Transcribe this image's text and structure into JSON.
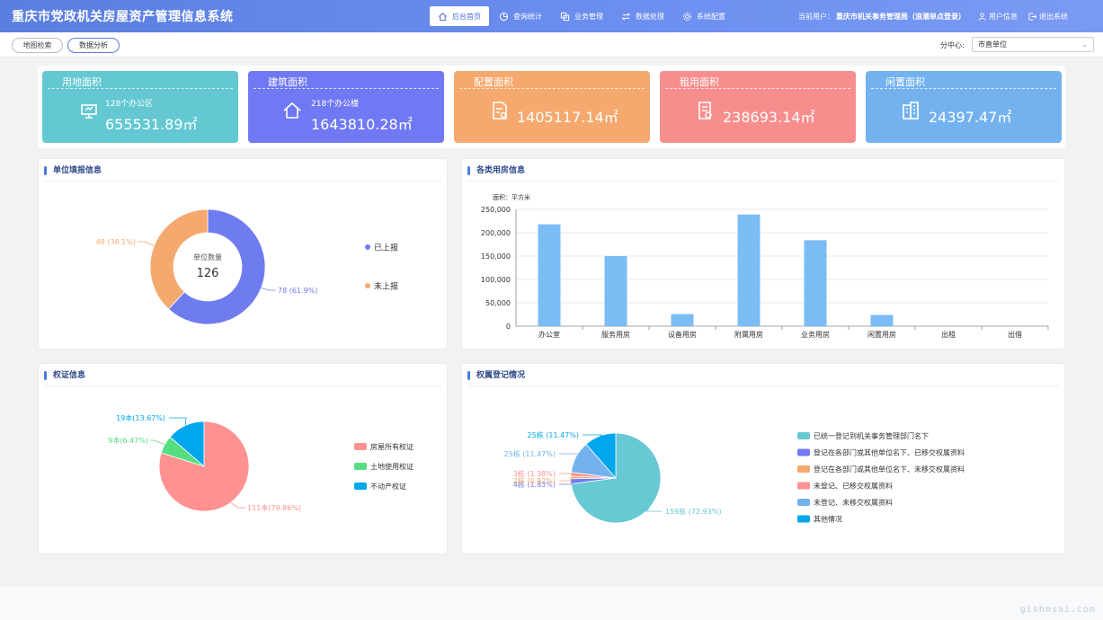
{
  "header": {
    "title": "重庆市党政机关房屋资产管理信息系统",
    "nav": [
      {
        "label": "后台首页",
        "icon": "home-icon",
        "active": true
      },
      {
        "label": "查询统计",
        "icon": "pie-chart-icon",
        "active": false
      },
      {
        "label": "业务管理",
        "icon": "copy-icon",
        "active": false
      },
      {
        "label": "数据处理",
        "icon": "swap-icon",
        "active": false
      },
      {
        "label": "系统配置",
        "icon": "gear-icon",
        "active": false
      }
    ],
    "user_label": "当前用户：",
    "user_name": "重庆市机关事务管理局（浪潮单点登录）",
    "user_info": "用户信息",
    "logout": "退出系统"
  },
  "toolbar": {
    "map_search": "地图检索",
    "data_analysis": "数据分析",
    "center_label": "分中心:",
    "center_value": "市直单位"
  },
  "stats": [
    {
      "title": "用地面积",
      "sub": "128个办公区",
      "value": "655531.89㎡",
      "color": "#63c8d1",
      "icon": "board-icon"
    },
    {
      "title": "建筑面积",
      "sub": "218个办公楼",
      "value": "1643810.28㎡",
      "color": "#7079f3",
      "icon": "house-icon"
    },
    {
      "title": "配置面积",
      "sub": "",
      "value": "1405117.14㎡",
      "color": "#f5a96e",
      "icon": "document-icon"
    },
    {
      "title": "租用面积",
      "sub": "",
      "value": "238693.14㎡",
      "color": "#f78e8e",
      "icon": "contract-icon"
    },
    {
      "title": "闲置面积",
      "sub": "",
      "value": "24397.47㎡",
      "color": "#73b2ef",
      "icon": "building-icon"
    }
  ],
  "panels": {
    "unit_report": "单位填报信息",
    "housing": "各类用房信息",
    "certificate": "权证信息",
    "ownership": "权属登记情况"
  },
  "chart_data": [
    {
      "type": "pie",
      "variant": "donut",
      "center_label": "单位数量",
      "center_value": "126",
      "slices": [
        {
          "name": "已上报",
          "value": 78,
          "label": "78 (61.9%)",
          "color": "#6f7cf0"
        },
        {
          "name": "未上报",
          "value": 48,
          "label": "48 (38.1%)",
          "color": "#f5a96e"
        }
      ],
      "legend": "right"
    },
    {
      "type": "bar",
      "unit_label": "面积：平方米",
      "categories": [
        "办公室",
        "服务用房",
        "设备用房",
        "附属用房",
        "业务用房",
        "闲置用房",
        "出租",
        "出借"
      ],
      "values": [
        218000,
        150000,
        26000,
        239000,
        184000,
        24000,
        0,
        0
      ],
      "yticks": [
        "0",
        "50,000",
        "100,000",
        "150,000",
        "200,000",
        "250,000"
      ],
      "ylim": [
        0,
        250000
      ],
      "color": "#7bbcf5",
      "grid": true
    },
    {
      "type": "pie",
      "slices": [
        {
          "name": "房屋所有权证",
          "value": 111,
          "label": "111本(79.86%)",
          "color": "#ff9191"
        },
        {
          "name": "土地使用权证",
          "value": 9,
          "label": "9本(6.47%)",
          "color": "#55dd7f"
        },
        {
          "name": "不动产权证",
          "value": 19,
          "label": "19本(13.67%)",
          "color": "#00a7ec"
        }
      ],
      "legend": "right"
    },
    {
      "type": "pie",
      "slices": [
        {
          "name": "已统一登记到机关事务管理部门名下",
          "value": 159,
          "label": "159栋 (72.93%)",
          "color": "#66c9d4"
        },
        {
          "name": "登记在各部门或其他单位名下、已移交权属资料",
          "value": 4,
          "label": "4栋 (1.83%)",
          "color": "#737af2"
        },
        {
          "name": "登记在各部门或其他单位名下、未移交权属资料",
          "value": 2,
          "label": "2栋 (0.92%)",
          "color": "#f5a96e"
        },
        {
          "name": "未登记、已移交权属资料",
          "value": 3,
          "label": "3栋 (1.38%)",
          "color": "#ff9191"
        },
        {
          "name": "未登记、未移交权属资料",
          "value": 25,
          "label": "25栋 (11.47%)",
          "color": "#73b2ef"
        },
        {
          "name": "其他情况",
          "value": 25,
          "label": "25栋 (11.47%)",
          "color": "#00a7ec"
        }
      ],
      "legend": "right"
    }
  ],
  "watermark": "gishmsai.com"
}
